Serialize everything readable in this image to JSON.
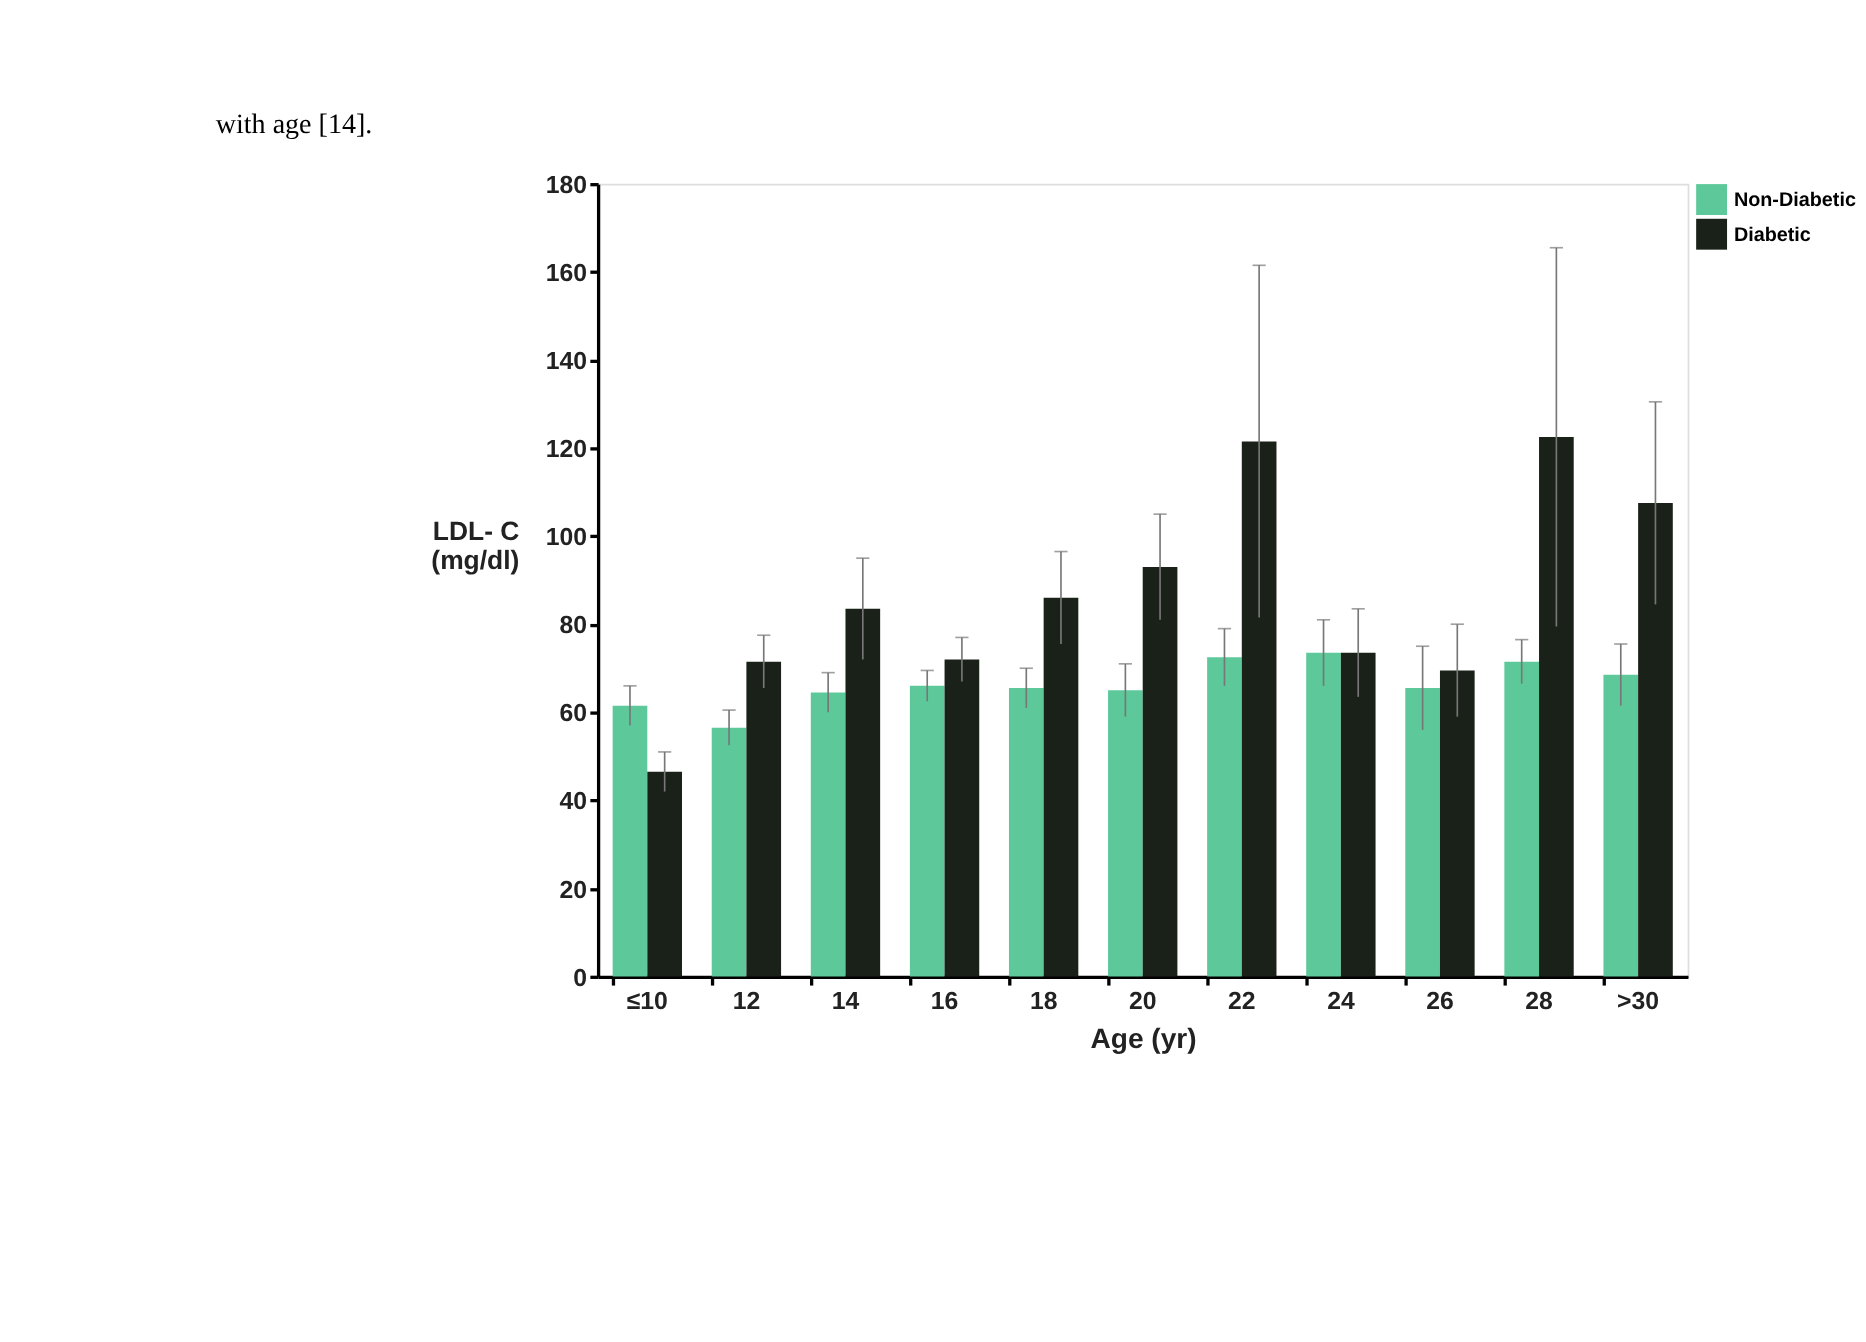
{
  "chart_data": {
    "type": "bar",
    "xlabel": "Age (yr)",
    "ylabel": "LDL- C\n(mg/dl)",
    "annotations": [
      "with age [14]."
    ],
    "categories": [
      "≤10",
      "12",
      "14",
      "16",
      "18",
      "20",
      "22",
      "24",
      "26",
      "28",
      ">30"
    ],
    "series": [
      {
        "name": "Non-Diabetic",
        "color": "#5dc99a",
        "values": [
          61.5,
          56.5,
          64.5,
          66,
          65.5,
          65,
          72.5,
          73.5,
          65.5,
          71.5,
          68.5
        ],
        "errors": [
          4.5,
          4,
          4.5,
          3.5,
          4.5,
          6,
          6.5,
          7.5,
          9.5,
          5,
          7
        ]
      },
      {
        "name": "Diabetic",
        "color": "#1a2119",
        "values": [
          46.5,
          71.5,
          83.5,
          72,
          86,
          93,
          121.5,
          73.5,
          69.5,
          122.5,
          107.5
        ],
        "errors": [
          4.5,
          6,
          11.5,
          5,
          10.5,
          12,
          40,
          10,
          10.5,
          43,
          23
        ]
      }
    ],
    "ylim": [
      0,
      180
    ],
    "yticks": [
      0,
      20,
      40,
      60,
      80,
      100,
      120,
      140,
      160,
      180
    ],
    "grid": false,
    "legend": "top right"
  }
}
